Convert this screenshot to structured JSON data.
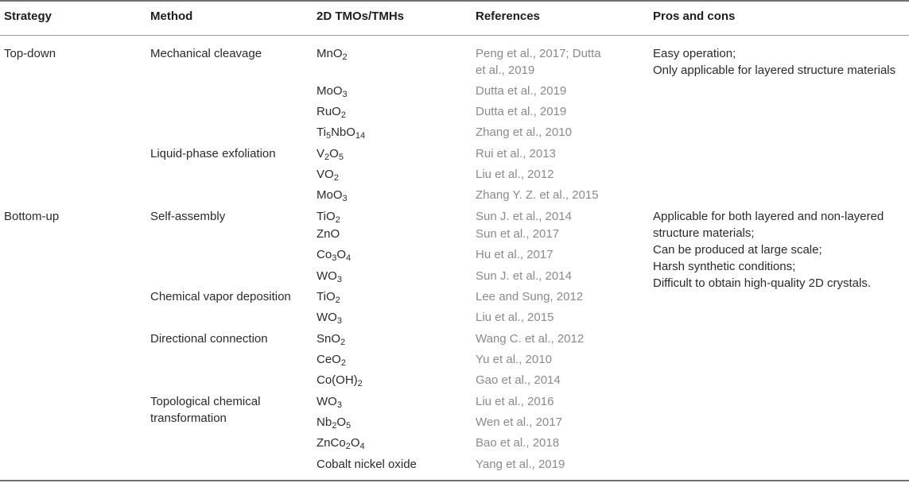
{
  "headers": {
    "strategy": "Strategy",
    "method": "Method",
    "materials": "2D TMOs/TMHs",
    "references": "References",
    "pros_cons": "Pros and cons"
  },
  "strategies": [
    "Top-down",
    "Bottom-up"
  ],
  "methods": [
    [
      "Mechanical cleavage"
    ],
    [
      "Liquid-phase exfoliation"
    ],
    [
      "Self-assembly"
    ],
    [
      "Chemical vapor deposition"
    ],
    [
      "Directional connection"
    ],
    [
      "Topological chemical",
      "transformation"
    ]
  ],
  "rows": [
    {
      "material": "MnO<sub>2</sub>",
      "reference": [
        "Peng et al., 2017; Dutta",
        "et al., 2019"
      ]
    },
    {
      "material": "MoO<sub>3</sub>",
      "reference": [
        "Dutta et al., 2019"
      ]
    },
    {
      "material": "RuO<sub>2</sub>",
      "reference": [
        "Dutta et al., 2019"
      ]
    },
    {
      "material": "Ti<sub>5</sub>NbO<sub>14</sub>",
      "reference": [
        "Zhang et al., 2010"
      ]
    },
    {
      "material": "V<sub>2</sub>O<sub>5</sub>",
      "reference": [
        "Rui et al., 2013"
      ]
    },
    {
      "material": "VO<sub>2</sub>",
      "reference": [
        "Liu et al., 2012"
      ]
    },
    {
      "material": "MoO<sub>3</sub>",
      "reference": [
        "Zhang Y. Z. et al., 2015"
      ]
    },
    {
      "material": "TiO<sub>2</sub>",
      "reference": [
        "Sun J. et al., 2014"
      ]
    },
    {
      "material": "ZnO",
      "reference": [
        "Sun et al., 2017"
      ]
    },
    {
      "material": "Co<sub>3</sub>O<sub>4</sub>",
      "reference": [
        "Hu et al., 2017"
      ]
    },
    {
      "material": "WO<sub>3</sub>",
      "reference": [
        "Sun J. et al., 2014"
      ]
    },
    {
      "material": "TiO<sub>2</sub>",
      "reference": [
        "Lee and Sung, 2012"
      ]
    },
    {
      "material": "WO<sub>3</sub>",
      "reference": [
        "Liu et al., 2015"
      ]
    },
    {
      "material": "SnO<sub>2</sub>",
      "reference": [
        "Wang C. et al., 2012"
      ]
    },
    {
      "material": "CeO<sub>2</sub>",
      "reference": [
        "Yu et al., 2010"
      ]
    },
    {
      "material": "Co(OH)<sub>2</sub>",
      "reference": [
        "Gao et al., 2014"
      ]
    },
    {
      "material": "WO<sub>3</sub>",
      "reference": [
        "Liu et al., 2016"
      ]
    },
    {
      "material": "Nb<sub>2</sub>O<sub>5</sub>",
      "reference": [
        "Wen et al., 2017"
      ]
    },
    {
      "material": "ZnCo<sub>2</sub>O<sub>4</sub>",
      "reference": [
        "Bao et al., 2018"
      ]
    },
    {
      "material": "Cobalt nickel oxide",
      "reference": [
        "Yang et al., 2019"
      ]
    }
  ],
  "pros_cons": [
    [
      "Easy operation;",
      "Only applicable for layered structure materials"
    ],
    [
      "Applicable for both layered and non-layered",
      "structure materials;",
      "Can be produced at large scale;",
      "Harsh synthetic conditions;",
      "Difficult to obtain high-quality 2D crystals."
    ]
  ]
}
